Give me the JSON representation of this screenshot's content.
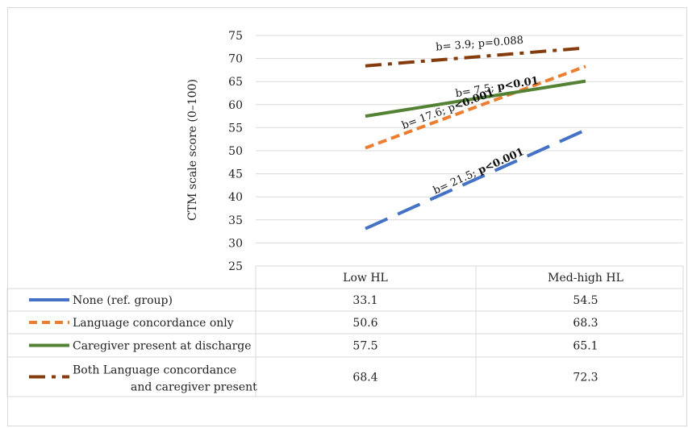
{
  "chart_data": {
    "type": "line",
    "ylabel": "CTM scale score (0–100)",
    "ylim": [
      25,
      75
    ],
    "yticks": [
      25,
      30,
      35,
      40,
      45,
      50,
      55,
      60,
      65,
      70,
      75
    ],
    "categories": [
      "Low HL",
      "Med-high HL"
    ],
    "grid": true,
    "legend": "data-table",
    "series": [
      {
        "name": "None (ref. group)",
        "values": [
          33.1,
          54.5
        ],
        "color": "#4472c4",
        "dash": "long-dash",
        "value_labels": [
          "33.1",
          "54.5"
        ],
        "annotation": {
          "plain": "b= 21.5; ",
          "bold": "p<0.001"
        }
      },
      {
        "name": "Language concordance only",
        "values": [
          50.6,
          68.3
        ],
        "color": "#ed7d31",
        "dash": "dash",
        "value_labels": [
          "50.6",
          "68.3"
        ],
        "annotation": {
          "plain": "b= 17.6; p",
          "bold": "<0.001"
        }
      },
      {
        "name": "Caregiver present at discharge",
        "values": [
          57.5,
          65.1
        ],
        "color": "#548235",
        "dash": "solid",
        "value_labels": [
          "57.5",
          "65.1"
        ],
        "annotation": {
          "plain": "b= 7.5; ",
          "bold": "p<0.01"
        }
      },
      {
        "name_lines": [
          "Both Language concordance",
          "and caregiver present"
        ],
        "values": [
          68.4,
          72.3
        ],
        "color": "#843c0c",
        "dash": "dash-dot",
        "value_labels": [
          "68.4",
          "72.3"
        ],
        "annotation": {
          "plain": "b= 3.9; p=0.088",
          "bold": ""
        }
      }
    ]
  }
}
